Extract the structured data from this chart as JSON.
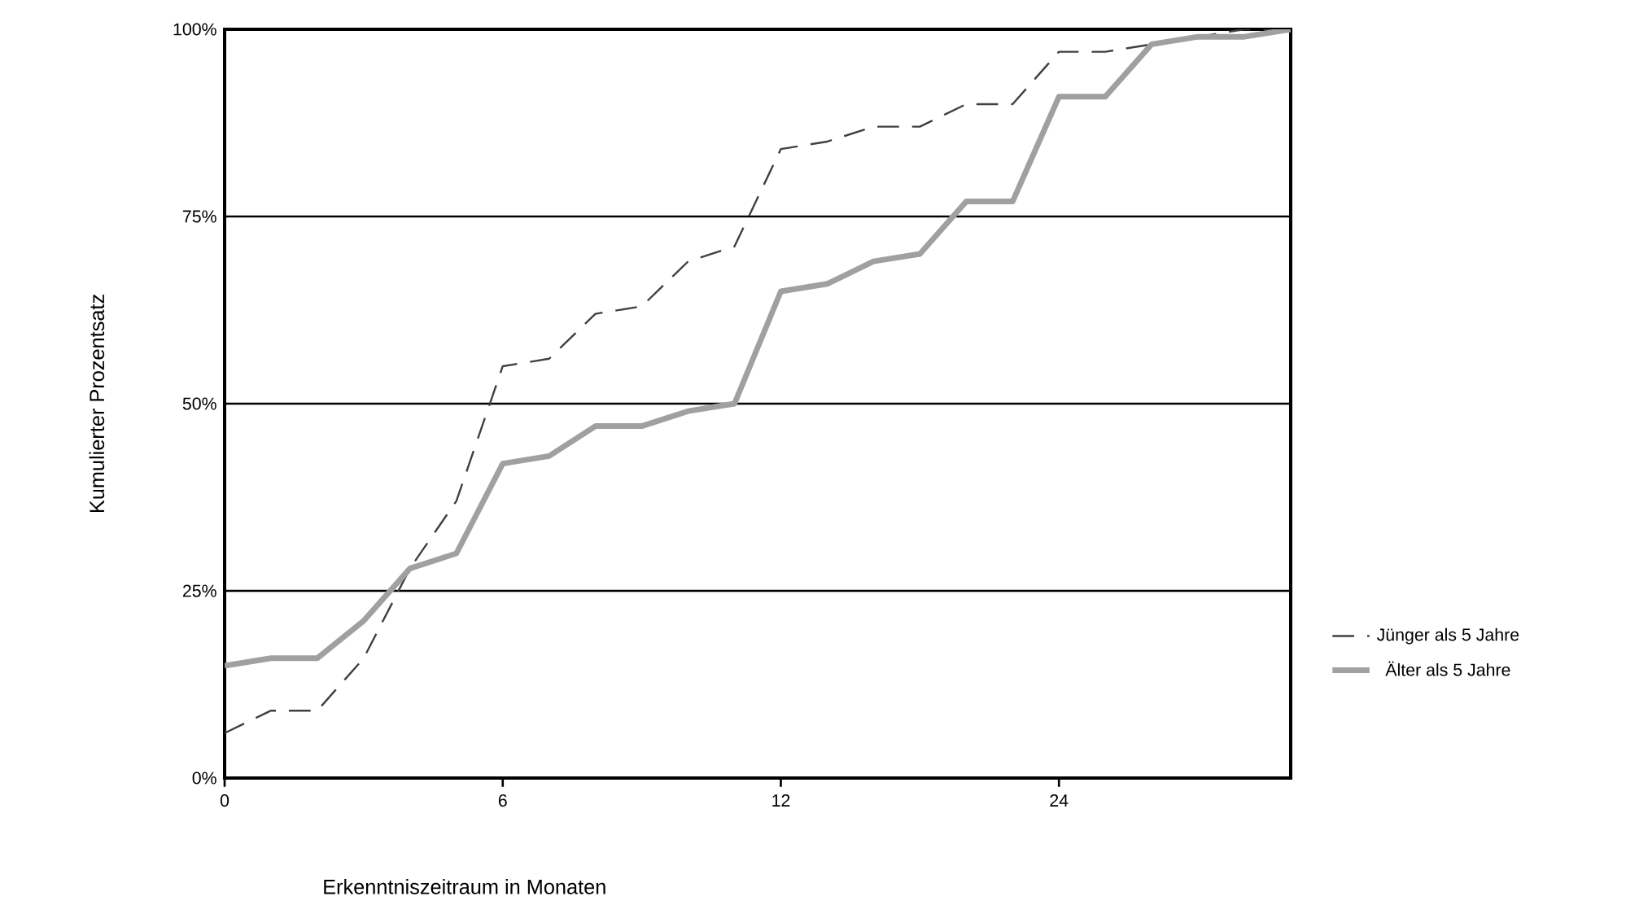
{
  "chart_data": {
    "type": "line",
    "xlabel": "Erkenntniszeitraum in Monaten",
    "ylabel": "Kumulierter Prozentsatz",
    "categories": [
      "0",
      null,
      null,
      null,
      null,
      null,
      "6",
      null,
      null,
      null,
      null,
      null,
      "12",
      null,
      null,
      null,
      null,
      null,
      "24",
      null,
      null,
      null,
      null,
      null
    ],
    "series": [
      {
        "name": "Jünger als 5 Jahre",
        "color": "#404040",
        "line_style": "dashed",
        "values": [
          6,
          9,
          9,
          16,
          28,
          37,
          55,
          56,
          62,
          63,
          69,
          71,
          84,
          85,
          87,
          87,
          90,
          90,
          97,
          97,
          98,
          99,
          100,
          100
        ]
      },
      {
        "name": "Älter als 5 Jahre",
        "color": "#a0a0a0",
        "line_style": "solid",
        "values": [
          15,
          16,
          16,
          21,
          28,
          30,
          42,
          43,
          47,
          47,
          49,
          50,
          65,
          66,
          69,
          70,
          77,
          77,
          91,
          91,
          98,
          99,
          99,
          100
        ]
      }
    ],
    "ylim": [
      0,
      100
    ],
    "yticks": [
      {
        "value": 0,
        "label": "0%"
      },
      {
        "value": 25,
        "label": "25%"
      },
      {
        "value": 50,
        "label": "50%"
      },
      {
        "value": 75,
        "label": "75%"
      },
      {
        "value": 100,
        "label": "100%"
      }
    ],
    "grid": "y",
    "legend": "right"
  }
}
